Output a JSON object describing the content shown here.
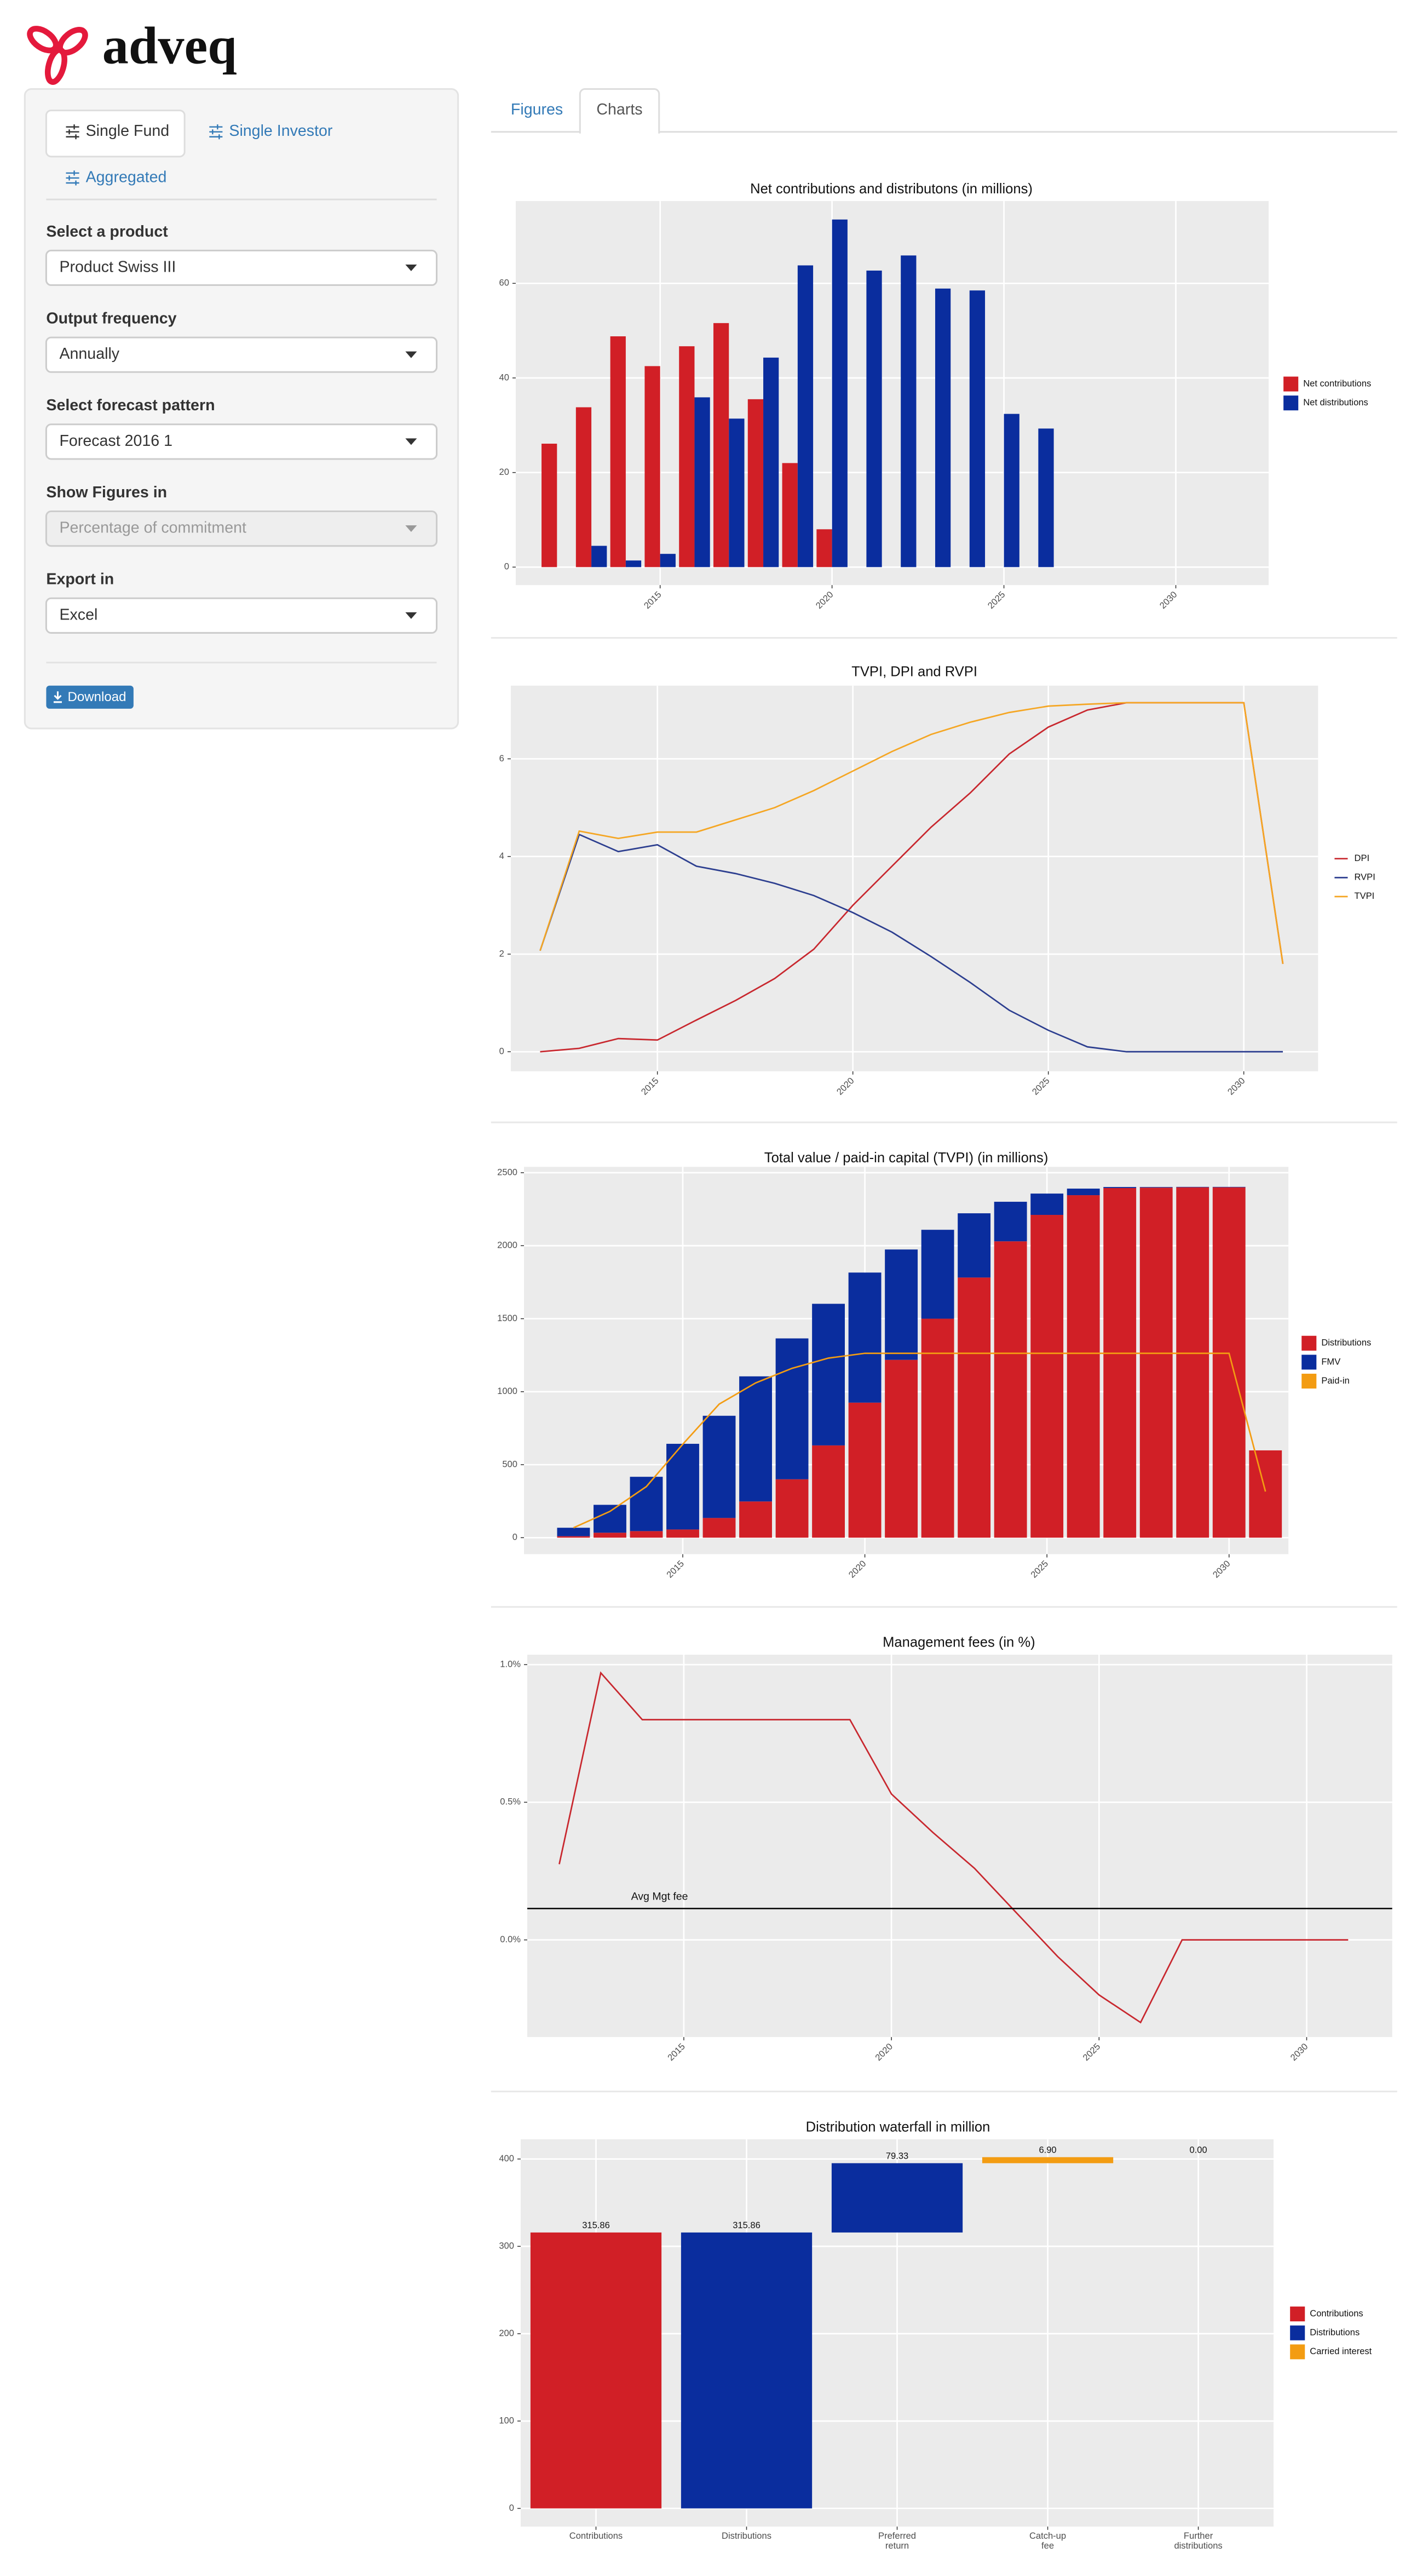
{
  "logo": "adveq",
  "sidebar": {
    "tabs": [
      "Single Fund",
      "Single Investor",
      "Aggregated"
    ],
    "active_tab": 0,
    "fields": [
      {
        "label": "Select a product",
        "value": "Product Swiss III"
      },
      {
        "label": "Output frequency",
        "value": "Annually"
      },
      {
        "label": "Select forecast pattern",
        "value": "Forecast 2016 1"
      },
      {
        "label": "Show Figures in",
        "value": "Percentage of commitment",
        "disabled": true
      },
      {
        "label": "Export in",
        "value": "Excel"
      }
    ],
    "download": "Download"
  },
  "main_tabs": [
    "Figures",
    "Charts"
  ],
  "active_main_tab": 1,
  "chart_data": [
    {
      "type": "bar",
      "title": "Net contributions and distributons (in millions)",
      "x": [
        2012,
        2013,
        2014,
        2015,
        2016,
        2017,
        2018,
        2019,
        2020,
        2021,
        2022,
        2023,
        2024,
        2025,
        2026
      ],
      "series": [
        {
          "name": "Net contributions",
          "color": "#d11f26",
          "values": [
            26.1,
            33.8,
            48.8,
            42.5,
            46.7,
            51.6,
            35.5,
            22.0,
            8.0,
            null,
            null,
            null,
            null,
            null,
            null
          ]
        },
        {
          "name": "Net distributions",
          "color": "#0a2d9e",
          "values": [
            null,
            4.5,
            1.4,
            2.8,
            35.9,
            31.4,
            44.3,
            63.8,
            73.5,
            62.7,
            65.9,
            58.9,
            58.5,
            32.4,
            29.3
          ]
        }
      ],
      "xlim": [
        2010.8,
        2032.7
      ],
      "xticks": [
        2015,
        2020,
        2025,
        2030
      ],
      "ylim": [
        -3.8,
        77.4
      ],
      "yticks": [
        0,
        20,
        40,
        60
      ],
      "grid": true,
      "legend": "right"
    },
    {
      "type": "line",
      "title": "TVPI, DPI and RVPI",
      "x": [
        2012,
        2013,
        2014,
        2015,
        2016,
        2017,
        2018,
        2019,
        2020,
        2021,
        2022,
        2023,
        2024,
        2025,
        2026,
        2027,
        2028,
        2029,
        2030,
        2031
      ],
      "series": [
        {
          "name": "DPI",
          "color": "#c8272e",
          "values": [
            0,
            0.07,
            0.27,
            0.24,
            0.65,
            1.05,
            1.5,
            2.1,
            3.0,
            3.8,
            4.6,
            5.3,
            6.1,
            6.65,
            7.0,
            7.15,
            7.15,
            7.15,
            7.15,
            1.8
          ]
        },
        {
          "name": "RVPI",
          "color": "#2c3e8f",
          "values": [
            2.07,
            4.45,
            4.1,
            4.24,
            3.8,
            3.65,
            3.45,
            3.2,
            2.85,
            2.45,
            1.95,
            1.42,
            0.85,
            0.44,
            0.1,
            0,
            0,
            0,
            0,
            0
          ]
        },
        {
          "name": "TVPI",
          "color": "#f5a623",
          "values": [
            2.07,
            4.52,
            4.37,
            4.5,
            4.5,
            4.75,
            5.0,
            5.35,
            5.75,
            6.15,
            6.5,
            6.75,
            6.95,
            7.08,
            7.12,
            7.15,
            7.15,
            7.15,
            7.15,
            1.8
          ]
        }
      ],
      "xlim": [
        2011.25,
        2031.9
      ],
      "xticks": [
        2015,
        2020,
        2025,
        2030
      ],
      "ylim": [
        -0.4,
        7.5
      ],
      "yticks": [
        0,
        2,
        4,
        6
      ],
      "grid": true,
      "legend": "right"
    },
    {
      "type": "bar",
      "stacked": true,
      "title": "Total value / paid-in capital (TVPI) (in millions)",
      "x": [
        2012,
        2013,
        2014,
        2015,
        2016,
        2017,
        2018,
        2019,
        2020,
        2021,
        2022,
        2023,
        2024,
        2025,
        2026,
        2027,
        2028,
        2029,
        2030,
        2031
      ],
      "series": [
        {
          "name": "Distributions",
          "color": "#d11f26",
          "values": [
            10,
            34,
            45,
            56,
            135,
            248,
            400,
            632,
            925,
            1218,
            1500,
            1782,
            2030,
            2211,
            2346,
            2395,
            2398,
            2400,
            2400,
            598
          ]
        },
        {
          "name": "FMV",
          "color": "#0a2d9e",
          "values": [
            58,
            191,
            372,
            587,
            700,
            857,
            965,
            970,
            891,
            756,
            609,
            440,
            271,
            146,
            45,
            7,
            4,
            3,
            3,
            0
          ]
        },
        {
          "name": "Paid-in",
          "color": "#f39c12",
          "type": "line",
          "values": [
            68,
            180,
            350,
            640,
            915,
            1060,
            1160,
            1230,
            1263,
            1263,
            1263,
            1263,
            1263,
            1263,
            1263,
            1263,
            1263,
            1263,
            1263,
            316
          ]
        }
      ],
      "xlim": [
        2010.64,
        2031.63
      ],
      "xticks": [
        2015,
        2020,
        2025,
        2030
      ],
      "ylim": [
        -113,
        2540
      ],
      "yticks": [
        0,
        500,
        1000,
        1500,
        2000,
        2500
      ],
      "grid": true,
      "legend": "right"
    },
    {
      "type": "line",
      "title": "Management fees (in %)",
      "x": [
        2012,
        2013,
        2014,
        2015,
        2016,
        2017,
        2018,
        2019,
        2020,
        2021,
        2022,
        2023,
        2024,
        2025,
        2026,
        2027,
        2028,
        2029,
        2030,
        2031
      ],
      "series": [
        {
          "color": "#c8272e",
          "values": [
            0.275,
            0.97,
            0.8,
            0.8,
            0.8,
            0.8,
            0.8,
            0.8,
            0.53,
            0.39,
            0.26,
            0.1,
            -0.06,
            -0.2,
            -0.3,
            0,
            0,
            0,
            0,
            0
          ]
        }
      ],
      "hline": {
        "value": 0.114,
        "label": "Avg Mgt fee",
        "color": "#000000"
      },
      "xlim": [
        2011.23,
        2032.06
      ],
      "xticks": [
        2015,
        2020,
        2025,
        2030
      ],
      "ylim": [
        -0.353,
        1.036
      ],
      "yticks": [
        {
          "value": 0,
          "label": "0.0%"
        },
        {
          "value": 0.5,
          "label": "0.5%"
        },
        {
          "value": 1,
          "label": "1.0%"
        }
      ],
      "grid": true
    },
    {
      "type": "waterfall",
      "title": "Distribution waterfall in million",
      "categories": [
        "Contributions",
        "Distributions",
        "Preferred\nreturn",
        "Catch-up\nfee",
        "Further\ndistributions"
      ],
      "series": [
        {
          "name": "Contributions",
          "color": "#d11f26",
          "values": [
            315.86,
            null,
            null,
            null,
            null
          ],
          "value_labels": [
            "315.86",
            null,
            null,
            null,
            null
          ]
        },
        {
          "name": "Distributions",
          "color": "#0a2d9e",
          "values": [
            null,
            315.86,
            79.33,
            null,
            null
          ],
          "value_labels": [
            null,
            "315.86",
            "79.33",
            null,
            null
          ]
        },
        {
          "name": "Carried interest",
          "color": "#f39c12",
          "values": [
            null,
            null,
            null,
            6.9,
            0.0
          ],
          "value_labels": [
            null,
            null,
            null,
            "6.90",
            "0.00"
          ]
        }
      ],
      "ylim": [
        -20.8,
        422.6
      ],
      "yticks": [
        0,
        100,
        200,
        300,
        400
      ],
      "grid": true,
      "legend": "right"
    }
  ]
}
